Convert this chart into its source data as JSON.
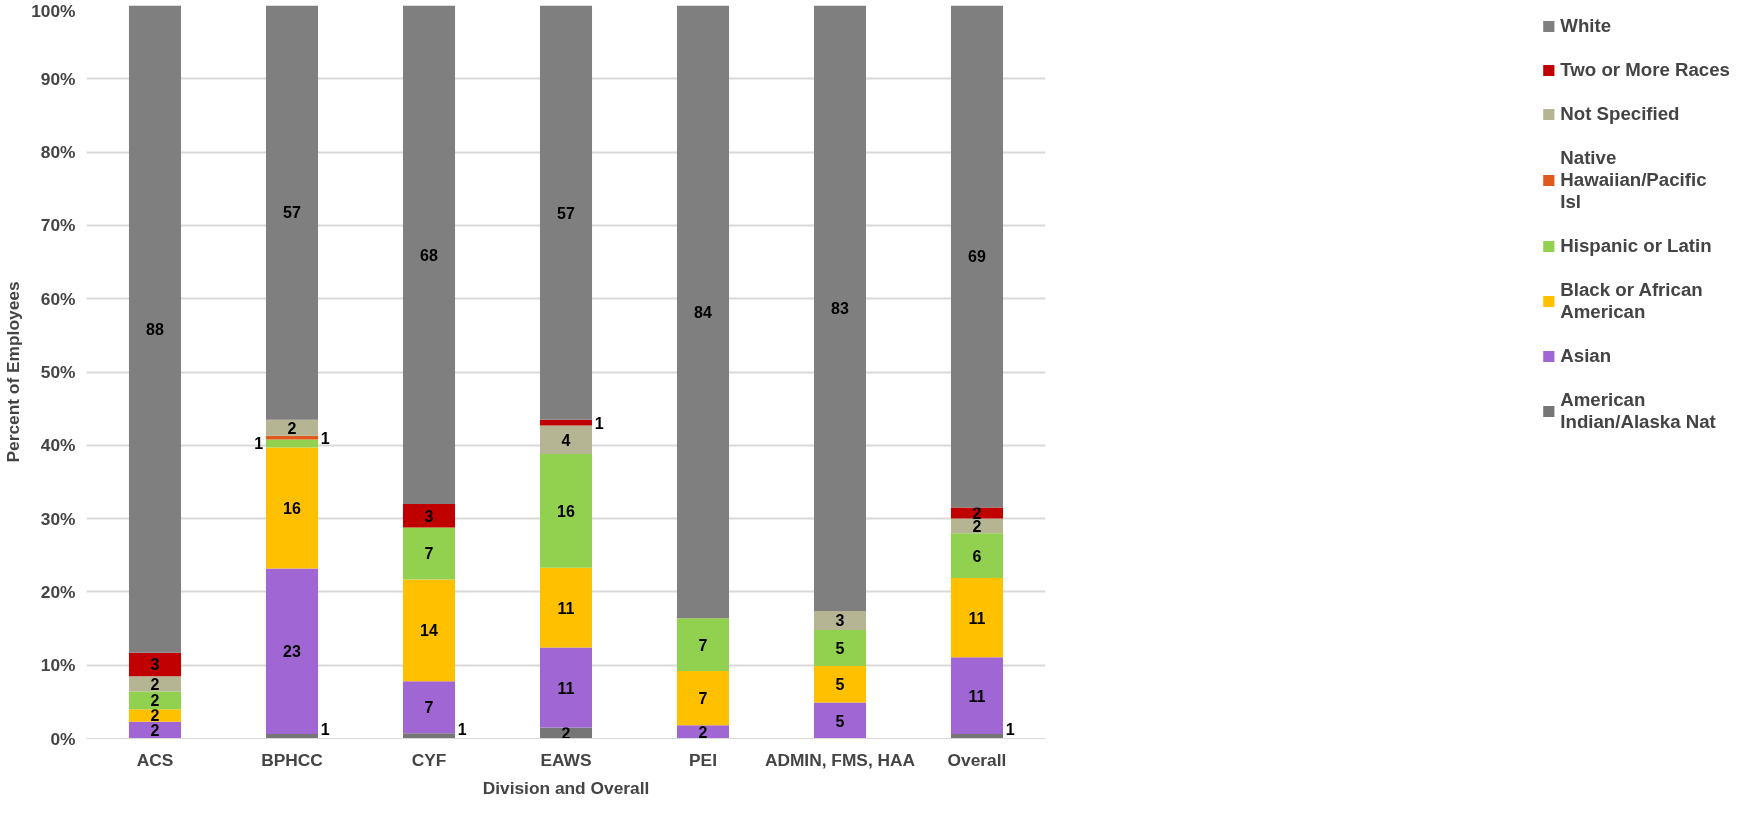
{
  "chart_data": {
    "type": "bar",
    "stacked": true,
    "xlabel": "Division and Overall",
    "ylabel": "Percent of Employees",
    "categories": [
      "ACS",
      "BPHCC",
      "CYF",
      "EAWS",
      "PEI",
      "ADMIN, FMS, HAA",
      "Overall"
    ],
    "ylim": [
      0,
      100
    ],
    "yticks": [
      {
        "value": 0,
        "label": "0%"
      },
      {
        "value": 10,
        "label": "10%"
      },
      {
        "value": 20,
        "label": "20%"
      },
      {
        "value": 30,
        "label": "30%"
      },
      {
        "value": 40,
        "label": "40%"
      },
      {
        "value": 50,
        "label": "50%"
      },
      {
        "value": 60,
        "label": "60%"
      },
      {
        "value": 70,
        "label": "70%"
      },
      {
        "value": 80,
        "label": "80%"
      },
      {
        "value": 90,
        "label": "90%"
      },
      {
        "value": 100,
        "label": "100%"
      }
    ],
    "grid": "y",
    "legend": "right",
    "series": [
      {
        "name": "American Indian/Alaska Nat",
        "color": "#767676",
        "values": [
          0,
          0.6,
          0.7,
          1.5,
          0,
          0,
          0.6
        ],
        "value_labels": [
          null,
          "1",
          "1",
          "2",
          null,
          null,
          "1"
        ]
      },
      {
        "name": "Asian",
        "color": "#a066d3",
        "values": [
          2.3,
          22.6,
          7.1,
          10.9,
          1.8,
          4.9,
          10.5
        ],
        "value_labels": [
          "2",
          "23",
          "7",
          "11",
          "2",
          "5",
          "11"
        ]
      },
      {
        "name": "Black or African American",
        "color": "#ffc000",
        "values": [
          1.7,
          16.5,
          13.9,
          10.9,
          7.4,
          5.0,
          10.8
        ],
        "value_labels": [
          "2",
          "16",
          "14",
          "11",
          "7",
          "5",
          "11"
        ]
      },
      {
        "name": "Hispanic or Latin",
        "color": "#92d050",
        "values": [
          2.4,
          1.1,
          7.1,
          15.5,
          7.2,
          4.9,
          6.1
        ],
        "value_labels": [
          "2",
          "1",
          "7",
          "16",
          "7",
          "5",
          "6"
        ]
      },
      {
        "name": "Native Hawaiian/Pacific Isl",
        "color": "#e05a20",
        "values": [
          0,
          0.5,
          0,
          0,
          0,
          0,
          0
        ],
        "value_labels": [
          null,
          "1",
          null,
          null,
          null,
          null,
          null
        ]
      },
      {
        "name": "Not Specified",
        "color": "#b5b594",
        "values": [
          2.1,
          2.2,
          0,
          3.9,
          0,
          2.6,
          2.0
        ],
        "value_labels": [
          "2",
          "2",
          null,
          "4",
          null,
          "3",
          "2"
        ]
      },
      {
        "name": "Two or More Races",
        "color": "#c00000",
        "values": [
          3.2,
          0,
          3.2,
          0.8,
          0,
          0,
          1.5
        ],
        "value_labels": [
          "3",
          null,
          "3",
          "1",
          null,
          null,
          "2"
        ]
      },
      {
        "name": "White",
        "color": "#7f7f7f",
        "values": [
          88.3,
          56.6,
          68.0,
          56.5,
          83.6,
          82.6,
          68.6
        ],
        "value_labels": [
          "88",
          "57",
          "68",
          "57",
          "84",
          "83",
          "69"
        ]
      }
    ]
  }
}
